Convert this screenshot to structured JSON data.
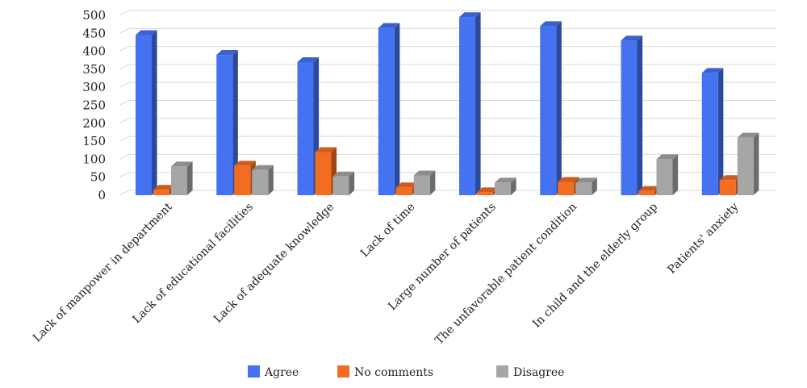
{
  "chart_data": {
    "type": "bar",
    "categories": [
      "Lack of manpower in department",
      "Lack of educational facilities",
      "Lack of adequate knowledge",
      "Lack of time",
      "Large number of patients",
      "The unfavorable patient condition",
      "In child and the elderly group",
      "Patients' anxiety"
    ],
    "series": [
      {
        "name": "Agree",
        "values": [
          445,
          390,
          370,
          465,
          495,
          470,
          430,
          340
        ],
        "color": "#4472f0"
      },
      {
        "name": "No comments",
        "values": [
          15,
          82,
          120,
          22,
          8,
          37,
          12,
          42
        ],
        "color": "#f26d22"
      },
      {
        "name": "Disagree",
        "values": [
          80,
          70,
          52,
          55,
          35,
          35,
          100,
          160
        ],
        "color": "#a6a6a6"
      }
    ],
    "yticks": [
      "0",
      "50",
      "100",
      "150",
      "200",
      "250",
      "300",
      "350",
      "400",
      "450",
      "500"
    ],
    "ylim": [
      0,
      500
    ],
    "grid": true,
    "legend_position": "bottom",
    "three_d": true
  }
}
